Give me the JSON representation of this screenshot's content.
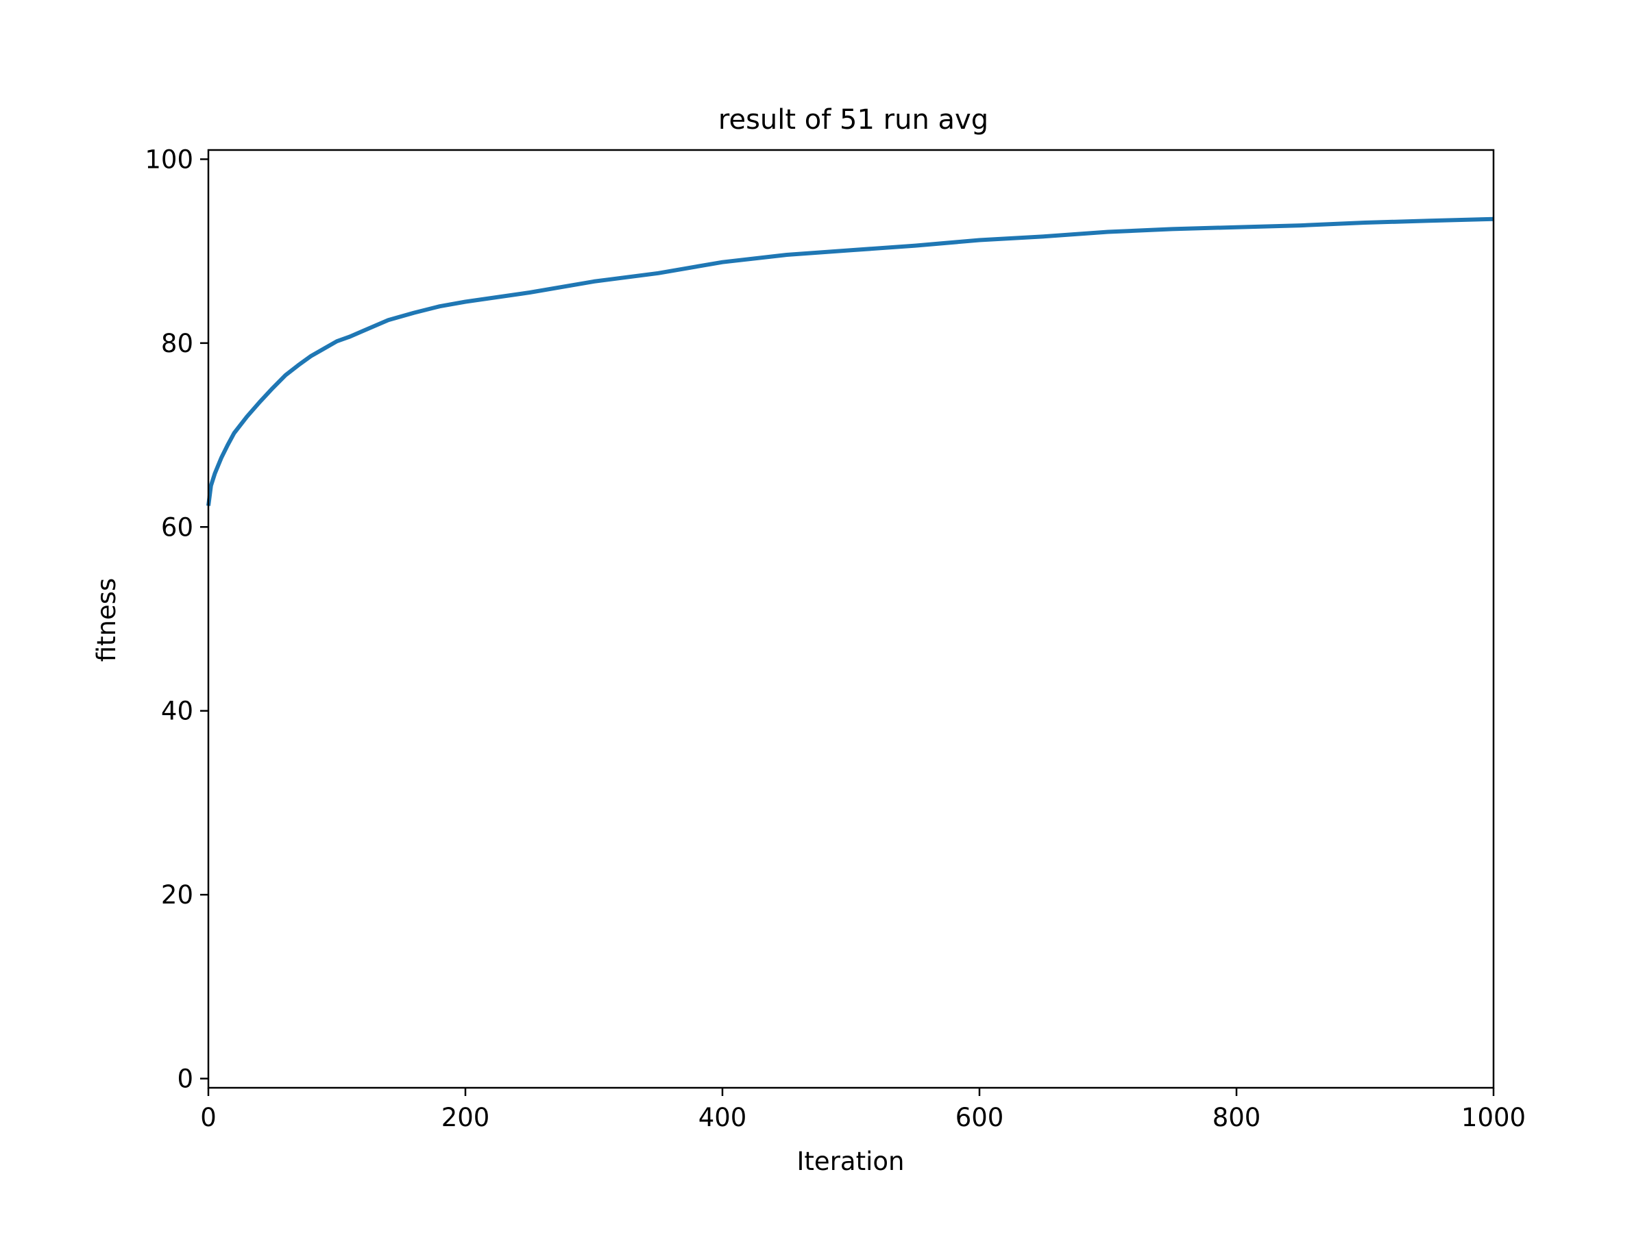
{
  "chart_data": {
    "type": "line",
    "title": "result of 51 run avg",
    "xlabel": "Iteration",
    "ylabel": "fitness",
    "xlim": [
      0,
      1000
    ],
    "ylim": [
      -1,
      101
    ],
    "xticks": [
      0,
      200,
      400,
      600,
      800,
      1000
    ],
    "yticks": [
      0,
      20,
      40,
      60,
      80,
      100
    ],
    "grid": false,
    "legend": "none",
    "series": [
      {
        "color": "#1f77b4",
        "x": [
          0,
          2,
          5,
          10,
          15,
          20,
          30,
          40,
          50,
          60,
          70,
          80,
          90,
          100,
          110,
          120,
          140,
          160,
          180,
          200,
          250,
          300,
          350,
          400,
          450,
          500,
          550,
          600,
          650,
          700,
          750,
          800,
          850,
          900,
          950,
          1000
        ],
        "y": [
          62.3,
          64.5,
          65.8,
          67.5,
          68.9,
          70.2,
          72.0,
          73.6,
          75.1,
          76.5,
          77.6,
          78.6,
          79.4,
          80.2,
          80.7,
          81.3,
          82.5,
          83.3,
          84.0,
          84.5,
          85.5,
          86.7,
          87.6,
          88.8,
          89.6,
          90.1,
          90.6,
          91.2,
          91.6,
          92.1,
          92.4,
          92.6,
          92.8,
          93.1,
          93.3,
          93.5
        ]
      }
    ]
  }
}
